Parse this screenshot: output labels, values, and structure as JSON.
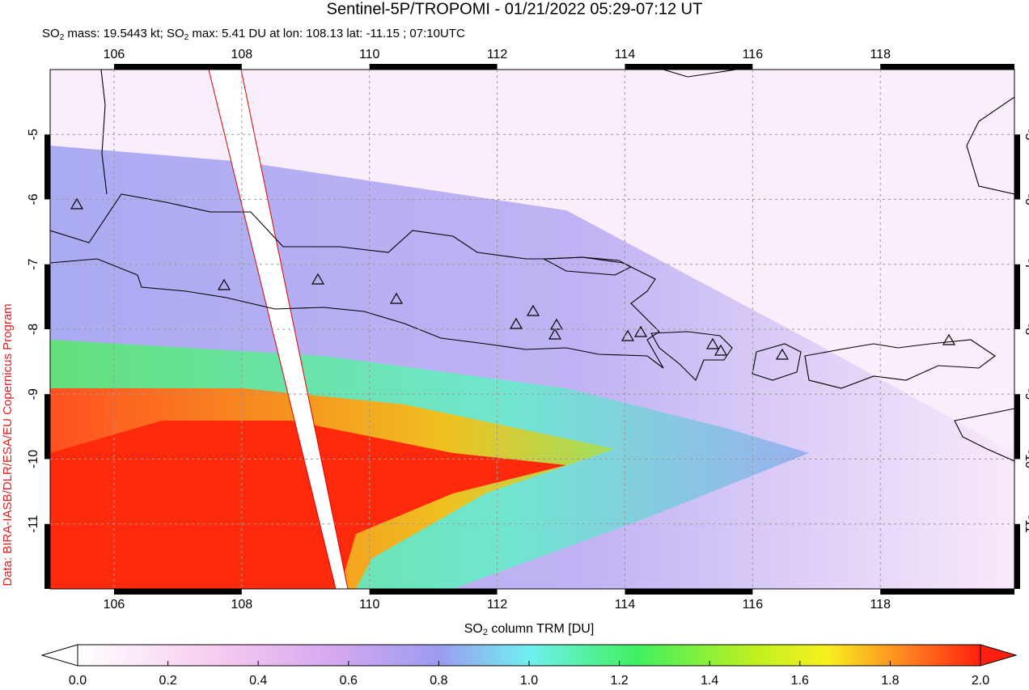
{
  "title": "Sentinel-5P/TROPOMI - 01/21/2022 05:29-07:12 UT",
  "subtitle": [
    "SO",
    "2",
    " mass: 19.5443 kt; SO",
    "2",
    " max: 5.41 DU at lon: 108.13 lat: -11.15 ; 07:10UTC"
  ],
  "credit": "Data: BIRA-IASB/DLR/ESA/EU Copernicus Program",
  "map": {
    "xlim": [
      105,
      120.1
    ],
    "ylim": [
      -12,
      -4
    ],
    "xticks": [
      106,
      108,
      110,
      112,
      114,
      116,
      118
    ],
    "yticks": [
      -5,
      -6,
      -7,
      -8,
      -9,
      -10,
      -11
    ]
  },
  "colorbar": {
    "label": [
      "SO",
      "2",
      " column TRM [DU]"
    ],
    "lim": [
      0,
      2
    ],
    "ticks": [
      {
        "value": 0,
        "label": "0.0"
      },
      0.2,
      0.4,
      0.6,
      0.8,
      {
        "value": 1,
        "label": "1.0"
      },
      1.2,
      1.4,
      1.6,
      1.8,
      {
        "value": 2,
        "label": "2.0"
      }
    ]
  }
}
